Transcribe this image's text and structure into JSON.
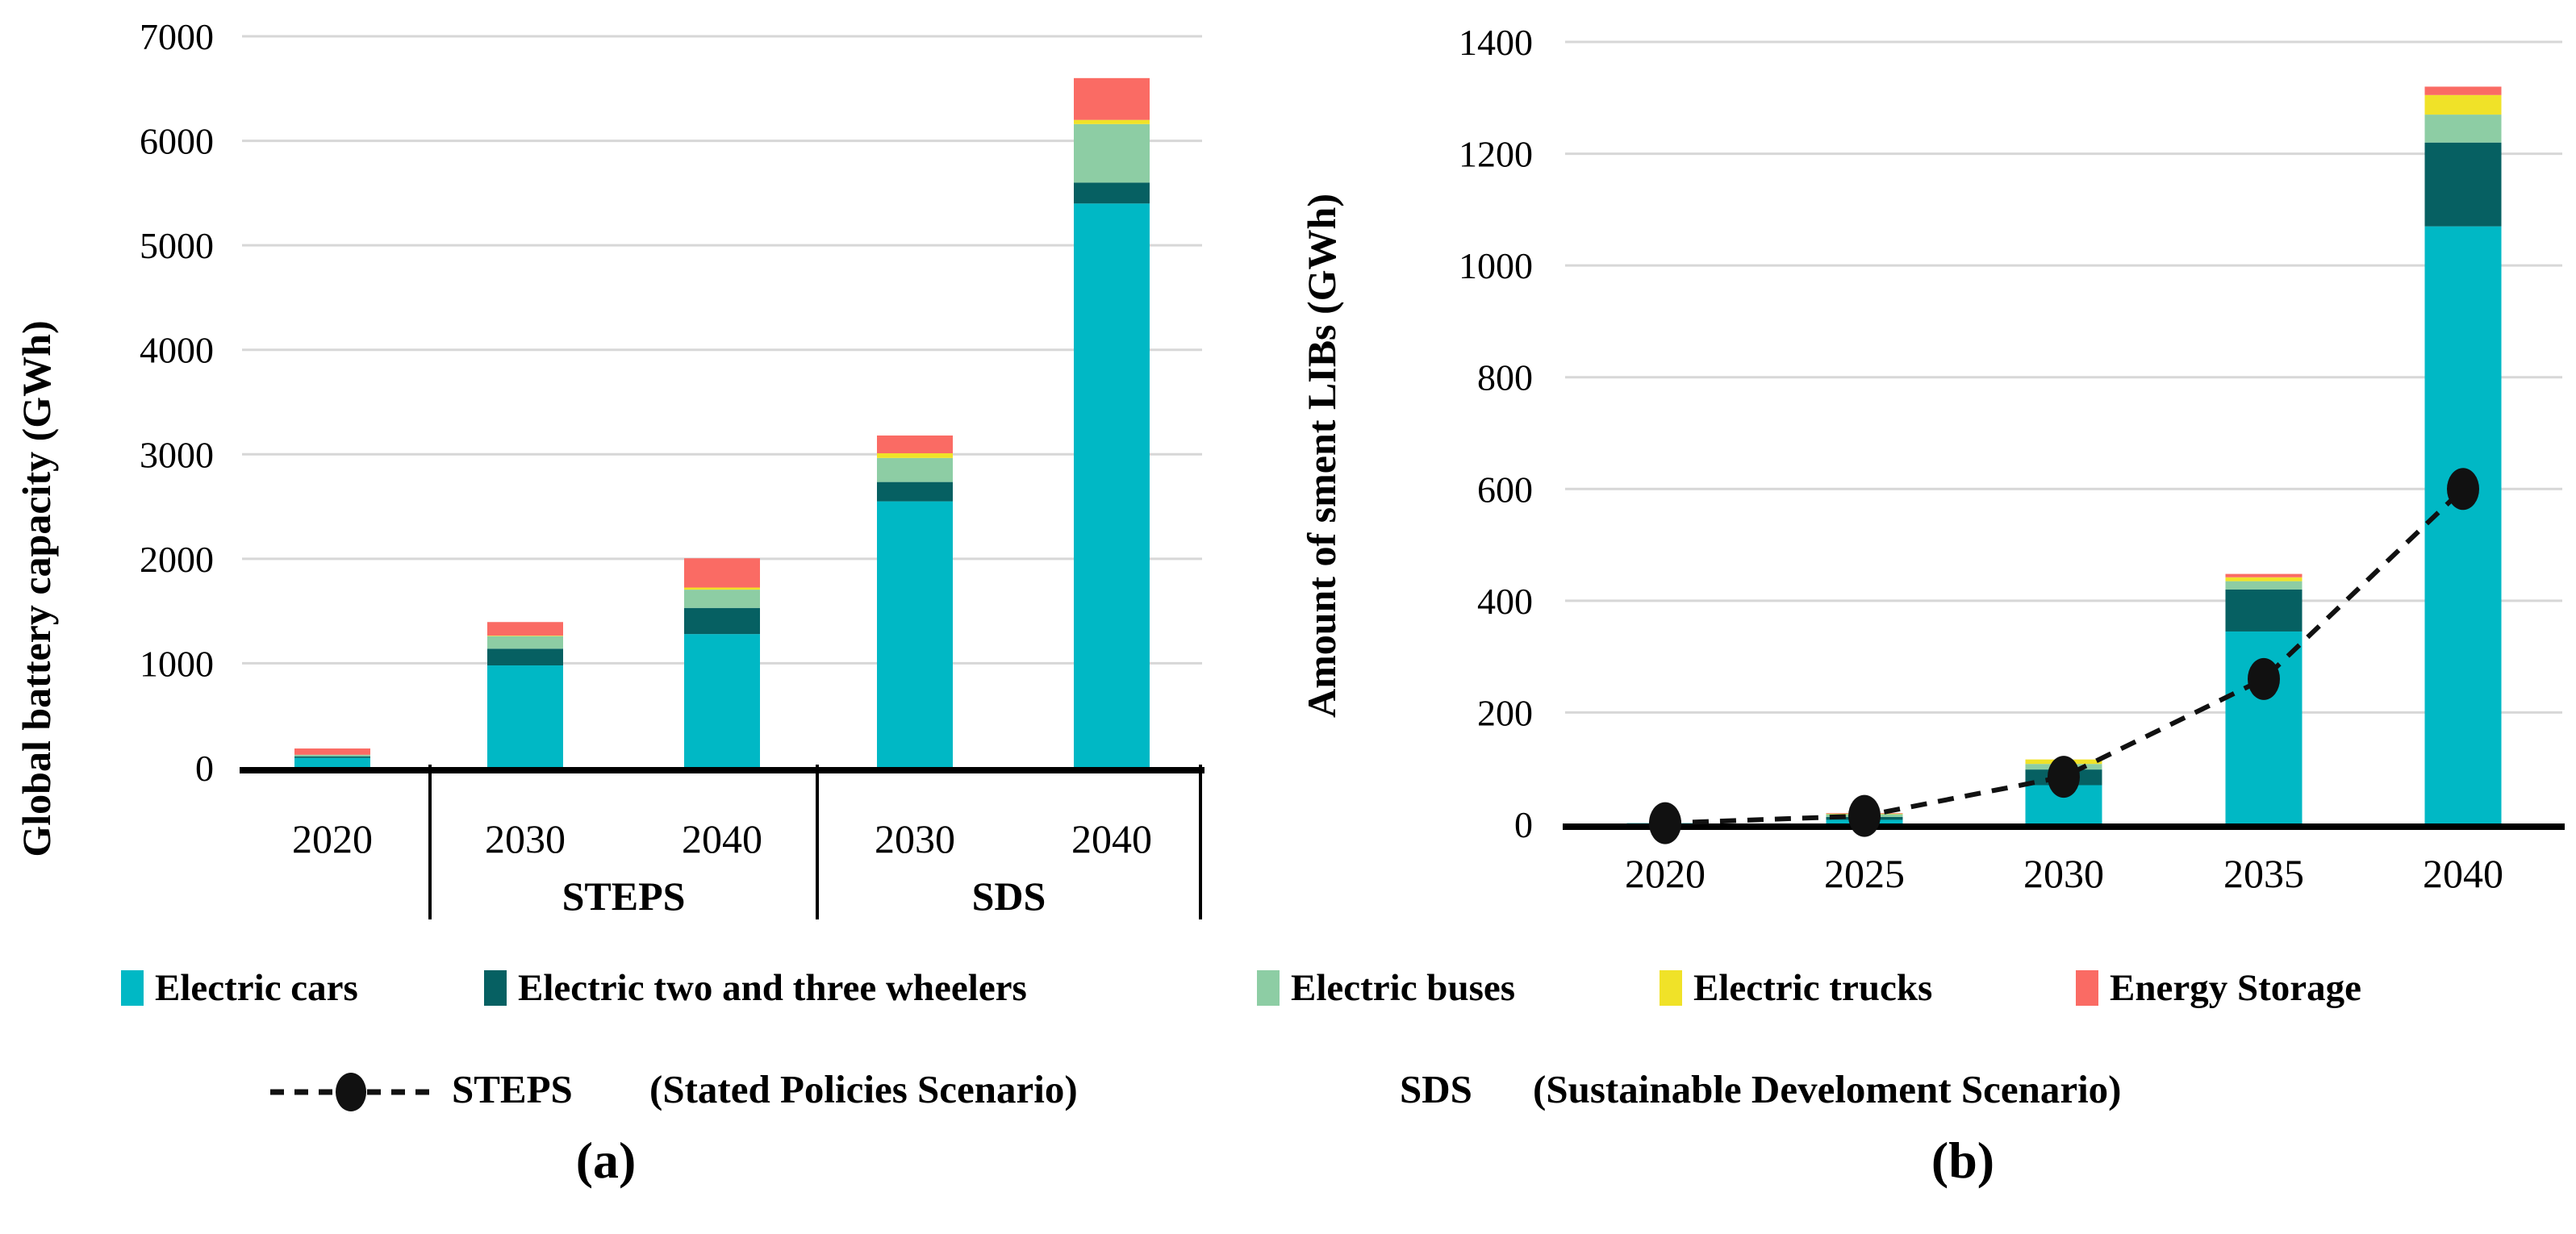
{
  "captions": {
    "a": "(a)",
    "b": "(b)"
  },
  "colors": {
    "electric_cars": "#00b8c5",
    "electric_two_three_wheelers": "#066062",
    "electric_buses": "#8dcda4",
    "electric_trucks": "#f0e228",
    "energy_storage": "#fa6b64",
    "gridline": "#d7d7d7",
    "axis": "#000000",
    "steps_line": "#111111"
  },
  "legend": {
    "items": [
      {
        "label": "Electric cars",
        "color": "#00b8c5"
      },
      {
        "label": "Electric two and three wheelers",
        "color": "#066062"
      },
      {
        "label": "Electric buses",
        "color": "#8dcda4"
      },
      {
        "label": "Electric trucks",
        "color": "#f0e228"
      },
      {
        "label": "Energy Storage",
        "color": "#fa6b64"
      }
    ],
    "line_item": {
      "label": "STEPS",
      "description": "(Stated Policies Scenario)"
    },
    "sds_item": {
      "label": "SDS",
      "description": "(Sustainable Develoment Scenario)"
    }
  },
  "chart_data": [
    {
      "type": "bar",
      "stacked": true,
      "panel": "a",
      "title": "",
      "xlabel": "",
      "ylabel": "Global battery capacity (GWh)",
      "ylim": [
        0,
        7000
      ],
      "ytick_step": 1000,
      "grid": true,
      "legend_position": "bottom",
      "categories": [
        "2020",
        "2030",
        "2040",
        "2030",
        "2040"
      ],
      "group_labels": [
        {
          "label": "STEPS",
          "categories": [
            1,
            2
          ]
        },
        {
          "label": "SDS",
          "categories": [
            3,
            4
          ]
        }
      ],
      "series": [
        {
          "name": "Electric cars",
          "color": "#00b8c5",
          "values": [
            95,
            980,
            1280,
            2550,
            5400
          ]
        },
        {
          "name": "Electric two and three wheelers",
          "color": "#066062",
          "values": [
            15,
            160,
            250,
            185,
            200
          ]
        },
        {
          "name": "Electric buses",
          "color": "#8dcda4",
          "values": [
            15,
            120,
            175,
            230,
            560
          ]
        },
        {
          "name": "Electric trucks",
          "color": "#f0e228",
          "values": [
            0,
            5,
            20,
            45,
            40
          ]
        },
        {
          "name": "Energy Storage",
          "color": "#fa6b64",
          "values": [
            60,
            130,
            280,
            170,
            400
          ]
        }
      ]
    },
    {
      "type": "bar+line",
      "stacked": true,
      "panel": "b",
      "title": "",
      "xlabel": "",
      "ylabel": "Amount of sment LIBs (GWh)",
      "ylim": [
        0,
        1400
      ],
      "ytick_step": 200,
      "grid": true,
      "legend_position": "bottom",
      "categories": [
        "2020",
        "2025",
        "2030",
        "2035",
        "2040"
      ],
      "series": [
        {
          "name": "Electric cars",
          "color": "#00b8c5",
          "values": [
            2,
            8,
            70,
            345,
            1070
          ]
        },
        {
          "name": "Electric two and three wheelers",
          "color": "#066062",
          "values": [
            0,
            5,
            28,
            75,
            150
          ]
        },
        {
          "name": "Electric buses",
          "color": "#8dcda4",
          "values": [
            0,
            5,
            10,
            15,
            50
          ]
        },
        {
          "name": "Electric trucks",
          "color": "#f0e228",
          "values": [
            0,
            1,
            8,
            7,
            35
          ]
        },
        {
          "name": "Energy Storage",
          "color": "#fa6b64",
          "values": [
            0,
            1,
            0,
            6,
            15
          ]
        }
      ],
      "line_series": {
        "name": "STEPS",
        "color": "#111111",
        "values": [
          2,
          15,
          85,
          260,
          600
        ]
      }
    }
  ]
}
